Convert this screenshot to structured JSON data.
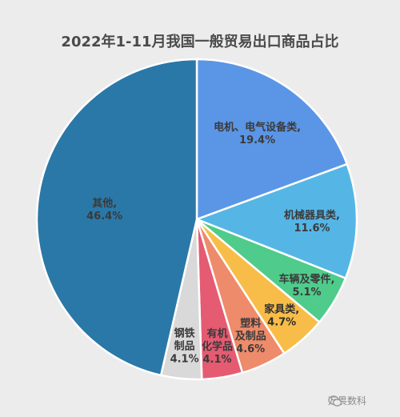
{
  "chart_data": {
    "type": "pie",
    "title": "2022年1-11月我国一般贸易出口商品占比",
    "slices": [
      {
        "label_lines": [
          "电机、电气设备类,",
          "19.4%"
        ],
        "value": 19.4,
        "color": "#5b96e6"
      },
      {
        "label_lines": [
          "机械器具类,",
          "11.6%"
        ],
        "value": 11.6,
        "color": "#55b6e6"
      },
      {
        "label_lines": [
          "车辆及零件,",
          "5.1%"
        ],
        "value": 5.1,
        "color": "#4fcb8b"
      },
      {
        "label_lines": [
          "家具类,",
          "4.7%"
        ],
        "value": 4.7,
        "color": "#f8bd48"
      },
      {
        "label_lines": [
          "塑料",
          "及制品",
          "4.6%"
        ],
        "value": 4.6,
        "color": "#ee8b6a"
      },
      {
        "label_lines": [
          "有机",
          "化学品",
          "4.1%"
        ],
        "value": 4.1,
        "color": "#e55b72"
      },
      {
        "label_lines": [
          "钢铁",
          "制品",
          "4.1%"
        ],
        "value": 4.1,
        "color": "#d9d9d9"
      },
      {
        "label_lines": [
          "其他,",
          "46.4%"
        ],
        "value": 46.4,
        "color": "#2a78a8"
      }
    ]
  },
  "watermark": {
    "text": "万畏数科"
  }
}
